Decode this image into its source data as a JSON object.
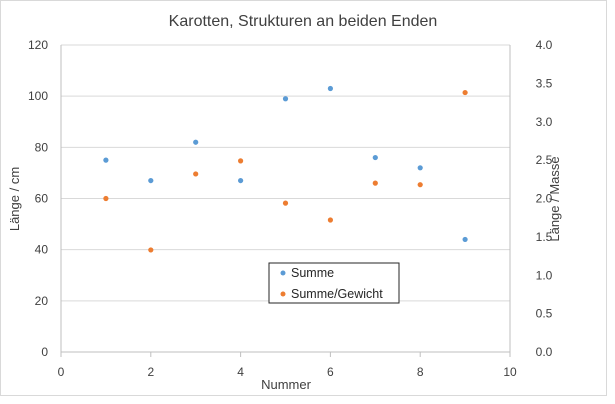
{
  "chart_data": {
    "type": "scatter",
    "title": "Karotten, Strukturen an beiden Enden",
    "xlabel": "Nummer",
    "ylabel_left": "Länge / cm",
    "ylabel_right": "Länge / Masse",
    "xlim": [
      0,
      10
    ],
    "ylim_left": [
      0,
      120
    ],
    "ylim_right": [
      0.0,
      4.0
    ],
    "x_ticks": [
      "0",
      "2",
      "4",
      "6",
      "8",
      "10"
    ],
    "y_left_ticks": [
      "0",
      "20",
      "40",
      "60",
      "80",
      "100",
      "120"
    ],
    "y_right_ticks": [
      "0.0",
      "0.5",
      "1.0",
      "1.5",
      "2.0",
      "2.5",
      "3.0",
      "3.5",
      "4.0"
    ],
    "grid": "horizontal",
    "legend_position": "center-bottom",
    "series": [
      {
        "name": "Summe",
        "axis": "left",
        "color": "#5b9bd5",
        "x": [
          1,
          2,
          3,
          4,
          5,
          6,
          7,
          8,
          9
        ],
        "y": [
          75,
          67,
          82,
          67,
          99,
          103,
          76,
          72,
          44
        ]
      },
      {
        "name": "Summe/Gewicht",
        "axis": "right",
        "color": "#ed7d31",
        "x": [
          1,
          2,
          3,
          4,
          5,
          6,
          7,
          8,
          9
        ],
        "y": [
          2.0,
          1.33,
          2.32,
          2.49,
          1.94,
          1.72,
          2.2,
          2.18,
          3.38
        ]
      }
    ]
  }
}
